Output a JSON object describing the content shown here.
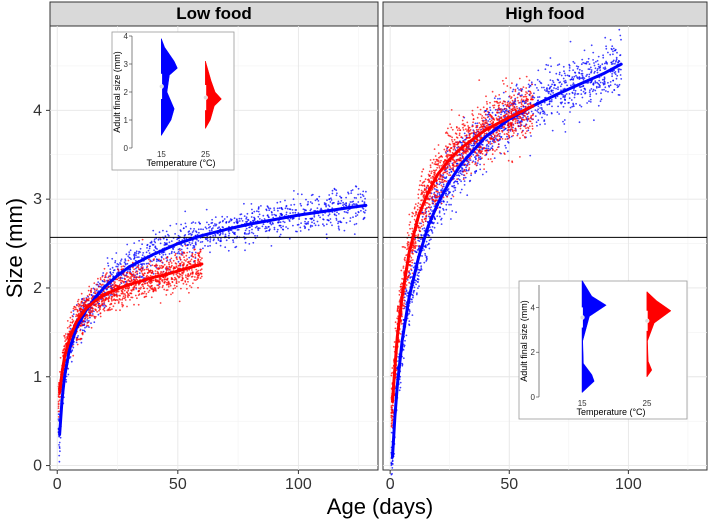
{
  "chart_data": {
    "type": "scatter",
    "xlabel": "Age (days)",
    "ylabel": "Size (mm)",
    "xlim": [
      -3,
      133
    ],
    "ylim": [
      -0.05,
      4.95
    ],
    "x_ticks": [
      0,
      50,
      100
    ],
    "y_ticks": [
      0,
      1,
      2,
      3,
      4
    ],
    "reference_line_y": 2.57,
    "grid": true,
    "colors": {
      "15": "#0000ff",
      "25": "#ff0000"
    },
    "panels": [
      {
        "title": "Low food",
        "series": [
          {
            "temperature": "15",
            "color": "#0000ff",
            "x": [
              1,
              2,
              3,
              5,
              8,
              12,
              16,
              20,
              25,
              30,
              40,
              50,
              60,
              70,
              80,
              90,
              100,
              110,
              120,
              128
            ],
            "y": [
              0.35,
              0.75,
              1.0,
              1.3,
              1.55,
              1.75,
              1.9,
              2.02,
              2.14,
              2.24,
              2.38,
              2.5,
              2.59,
              2.66,
              2.72,
              2.77,
              2.82,
              2.86,
              2.9,
              2.93
            ]
          },
          {
            "temperature": "25",
            "color": "#ff0000",
            "x": [
              1,
              2,
              3,
              5,
              8,
              12,
              16,
              20,
              25,
              30,
              35,
              40,
              45,
              50,
              55,
              60
            ],
            "y": [
              0.82,
              1.05,
              1.22,
              1.42,
              1.62,
              1.77,
              1.86,
              1.93,
              1.99,
              2.04,
              2.08,
              2.12,
              2.15,
              2.19,
              2.23,
              2.27
            ]
          }
        ],
        "inset": {
          "xlabel": "Temperature (°C)",
          "ylabel": "Adult final size (mm)",
          "categories": [
            "15",
            "25"
          ],
          "ylim": [
            0,
            4
          ],
          "y_ticks": [
            0,
            1,
            2,
            3,
            4
          ],
          "medians": [
            2.2,
            1.8
          ]
        }
      },
      {
        "title": "High food",
        "series": [
          {
            "temperature": "15",
            "color": "#0000ff",
            "x": [
              1,
              2,
              3,
              5,
              8,
              12,
              16,
              20,
              25,
              30,
              40,
              50,
              60,
              70,
              80,
              90,
              97
            ],
            "y": [
              0.1,
              0.55,
              0.9,
              1.4,
              1.9,
              2.35,
              2.7,
              2.95,
              3.2,
              3.4,
              3.7,
              3.9,
              4.05,
              4.18,
              4.3,
              4.42,
              4.52
            ]
          },
          {
            "temperature": "25",
            "color": "#ff0000",
            "x": [
              1,
              2,
              3,
              5,
              8,
              12,
              16,
              20,
              25,
              30,
              40,
              50,
              60
            ],
            "y": [
              0.72,
              1.1,
              1.45,
              1.9,
              2.4,
              2.82,
              3.08,
              3.28,
              3.45,
              3.58,
              3.78,
              3.92,
              4.05
            ]
          }
        ],
        "inset": {
          "xlabel": "Temperature (°C)",
          "ylabel": "Adult final size (mm)",
          "categories": [
            "15",
            "25"
          ],
          "ylim": [
            0,
            5
          ],
          "y_ticks": [
            0,
            2,
            4
          ],
          "medians": [
            3.55,
            3.4
          ]
        }
      }
    ]
  }
}
